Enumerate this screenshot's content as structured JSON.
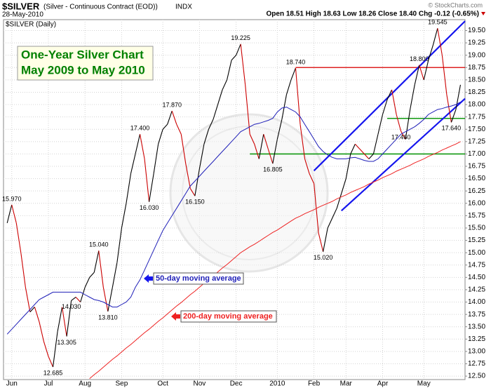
{
  "chart_data": {
    "type": "line",
    "header": {
      "symbol": "$SILVER",
      "description": "(Silver - Continuous Contract (EOD))",
      "exchange": "INDX",
      "date": "28-May-2010",
      "quote": "Open 18.51 High 18.63 Low 18.26 Close 18.40 Chg -0.12 (-0.65%)",
      "copyright": "© StockCharts.com",
      "panel_label": "$SILVER (Daily)"
    },
    "title": [
      "One-Year Silver Chart",
      "May 2009 to May 2010"
    ],
    "title_color": "#008000",
    "xlim": [
      -0.8,
      100
    ],
    "xticks": [
      {
        "value": 1,
        "label": "Jun"
      },
      {
        "value": 9,
        "label": "Jul"
      },
      {
        "value": 17,
        "label": "Aug"
      },
      {
        "value": 25,
        "label": "Sep"
      },
      {
        "value": 34,
        "label": "Oct"
      },
      {
        "value": 42,
        "label": "Nov"
      },
      {
        "value": 50,
        "label": "Dec"
      },
      {
        "value": 59,
        "label": "2010"
      },
      {
        "value": 67,
        "label": "Feb"
      },
      {
        "value": 74,
        "label": "Mar"
      },
      {
        "value": 82,
        "label": "Apr"
      },
      {
        "value": 91,
        "label": "May"
      }
    ],
    "ylim": [
      12.43,
      19.72
    ],
    "yticks": [
      {
        "value": 12.5,
        "label": "12.50"
      },
      {
        "value": 12.75,
        "label": "12.75"
      },
      {
        "value": 13,
        "label": "13.00"
      },
      {
        "value": 13.25,
        "label": "13.25"
      },
      {
        "value": 13.5,
        "label": "13.50"
      },
      {
        "value": 13.75,
        "label": "13.75"
      },
      {
        "value": 14,
        "label": "14.00"
      },
      {
        "value": 14.25,
        "label": "14.25"
      },
      {
        "value": 14.5,
        "label": "14.50"
      },
      {
        "value": 14.75,
        "label": "14.75"
      },
      {
        "value": 15,
        "label": "15.00"
      },
      {
        "value": 15.25,
        "label": "15.25"
      },
      {
        "value": 15.5,
        "label": "15.50"
      },
      {
        "value": 15.75,
        "label": "15.75"
      },
      {
        "value": 16,
        "label": "16.00"
      },
      {
        "value": 16.25,
        "label": "16.25"
      },
      {
        "value": 16.5,
        "label": "16.50"
      },
      {
        "value": 16.75,
        "label": "16.75"
      },
      {
        "value": 17,
        "label": "17.00"
      },
      {
        "value": 17.25,
        "label": "17.25"
      },
      {
        "value": 17.5,
        "label": "17.50"
      },
      {
        "value": 17.75,
        "label": "17.75"
      },
      {
        "value": 18,
        "label": "18.00"
      },
      {
        "value": 18.25,
        "label": "18.25"
      },
      {
        "value": 18.5,
        "label": "18.50"
      },
      {
        "value": 18.75,
        "label": "18.75"
      },
      {
        "value": 19,
        "label": "19.00"
      },
      {
        "value": 19.25,
        "label": "19.25"
      },
      {
        "value": 19.5,
        "label": "19.50"
      }
    ],
    "grid": true,
    "series": [
      {
        "role": "price",
        "color": "#000000",
        "down_color": "#cc0000",
        "values": [
          15.6,
          15.97,
          15.6,
          15.0,
          14.3,
          13.8,
          13.9,
          13.6,
          13.2,
          12.9,
          12.685,
          13.4,
          13.9,
          13.305,
          14.03,
          14.1,
          14.0,
          14.3,
          14.5,
          14.6,
          15.04,
          14.3,
          13.81,
          14.3,
          14.8,
          15.5,
          16.0,
          16.6,
          17.0,
          17.4,
          16.9,
          16.03,
          16.6,
          17.2,
          17.5,
          17.6,
          17.87,
          17.6,
          17.4,
          16.8,
          16.3,
          16.15,
          16.7,
          17.2,
          17.5,
          17.7,
          18.0,
          18.3,
          18.5,
          18.9,
          19.0,
          19.225,
          18.4,
          17.4,
          17.2,
          16.9,
          17.4,
          17.1,
          16.805,
          17.3,
          17.7,
          18.2,
          18.5,
          18.74,
          17.6,
          16.9,
          16.6,
          16.4,
          15.4,
          15.02,
          15.5,
          15.7,
          15.9,
          16.2,
          16.5,
          17.0,
          17.2,
          17.1,
          17.0,
          16.9,
          17.0,
          17.4,
          17.8,
          18.1,
          18.3,
          17.8,
          17.46,
          17.3,
          17.9,
          18.4,
          18.8,
          18.5,
          18.9,
          19.2,
          19.545,
          19.0,
          18.2,
          17.64,
          17.9,
          18.4
        ],
        "value_labels": [
          null,
          "15.970",
          null,
          null,
          null,
          null,
          null,
          null,
          null,
          null,
          "12.685",
          null,
          null,
          "13.305",
          "14.030",
          null,
          null,
          null,
          null,
          null,
          "15.040",
          null,
          "13.810",
          null,
          null,
          null,
          null,
          null,
          null,
          "17.400",
          null,
          "16.030",
          null,
          null,
          null,
          null,
          "17.870",
          null,
          null,
          null,
          null,
          "16.150",
          null,
          null,
          null,
          null,
          null,
          null,
          null,
          null,
          null,
          "19.225",
          null,
          null,
          null,
          null,
          null,
          null,
          "16.805",
          null,
          null,
          null,
          null,
          "18.740",
          null,
          null,
          null,
          null,
          null,
          "15.020",
          null,
          null,
          null,
          null,
          null,
          null,
          null,
          null,
          null,
          null,
          null,
          null,
          null,
          null,
          null,
          null,
          "17.460",
          null,
          null,
          null,
          "18.800",
          null,
          null,
          null,
          "19.545",
          null,
          null,
          "17.640",
          null,
          null
        ]
      },
      {
        "name": "50-day moving average",
        "color": "#1f1fb8",
        "values": [
          13.35,
          13.45,
          13.55,
          13.65,
          13.75,
          13.85,
          13.95,
          14.05,
          14.1,
          14.15,
          14.2,
          14.2,
          14.2,
          14.2,
          14.2,
          14.2,
          14.2,
          14.15,
          14.1,
          14.05,
          14.03,
          14.0,
          13.95,
          13.9,
          13.9,
          13.95,
          14.0,
          14.1,
          14.3,
          14.45,
          14.65,
          14.85,
          15.05,
          15.25,
          15.45,
          15.6,
          15.75,
          15.9,
          16.05,
          16.2,
          16.35,
          16.45,
          16.55,
          16.65,
          16.75,
          16.85,
          16.95,
          17.05,
          17.15,
          17.25,
          17.35,
          17.45,
          17.5,
          17.55,
          17.6,
          17.62,
          17.65,
          17.68,
          17.72,
          17.85,
          17.93,
          17.95,
          17.9,
          17.85,
          17.75,
          17.6,
          17.45,
          17.3,
          17.15,
          17.05,
          16.98,
          16.93,
          16.9,
          16.9,
          16.9,
          16.92,
          16.93,
          16.9,
          16.87,
          16.85,
          16.85,
          16.9,
          17.0,
          17.1,
          17.2,
          17.3,
          17.4,
          17.45,
          17.5,
          17.55,
          17.62,
          17.7,
          17.8,
          17.85,
          17.9,
          17.92,
          17.95,
          17.97,
          18.0,
          18.05
        ]
      },
      {
        "name": "200-day moving average",
        "color": "#ee2222",
        "values": [
          null,
          null,
          null,
          null,
          null,
          null,
          null,
          null,
          null,
          null,
          null,
          null,
          null,
          null,
          null,
          null,
          null,
          null,
          12.45,
          12.53,
          12.6,
          12.68,
          12.76,
          12.84,
          12.91,
          12.99,
          13.07,
          13.14,
          13.22,
          13.3,
          13.38,
          13.45,
          13.53,
          13.61,
          13.68,
          13.76,
          13.84,
          13.92,
          13.99,
          14.07,
          14.15,
          14.22,
          14.3,
          14.38,
          14.46,
          14.53,
          14.61,
          14.69,
          14.76,
          14.84,
          14.92,
          15.0,
          15.06,
          15.12,
          15.17,
          15.23,
          15.29,
          15.35,
          15.41,
          15.46,
          15.52,
          15.58,
          15.64,
          15.7,
          15.74,
          15.79,
          15.83,
          15.87,
          15.92,
          15.96,
          16.0,
          16.04,
          16.09,
          16.13,
          16.17,
          16.22,
          16.26,
          16.3,
          16.34,
          16.39,
          16.43,
          16.47,
          16.52,
          16.56,
          16.6,
          16.65,
          16.69,
          16.73,
          16.77,
          16.82,
          16.86,
          16.9,
          16.95,
          16.99,
          17.03,
          17.08,
          17.12,
          17.16,
          17.2,
          17.25
        ]
      }
    ],
    "lines": [
      {
        "color": "#dd2222",
        "x": [
          63,
          100
        ],
        "y": [
          18.75,
          18.75
        ]
      },
      {
        "color": "#119911",
        "x": [
          53,
          100
        ],
        "y": [
          17.0,
          17.0
        ]
      },
      {
        "color": "#119911",
        "x": [
          83,
          100
        ],
        "y": [
          17.72,
          17.72
        ]
      },
      {
        "color": "#1515ee",
        "x": [
          67,
          100
        ],
        "y": [
          16.66,
          19.69
        ]
      },
      {
        "color": "#1515ee",
        "x": [
          73,
          100
        ],
        "y": [
          15.85,
          18.12
        ]
      }
    ]
  }
}
